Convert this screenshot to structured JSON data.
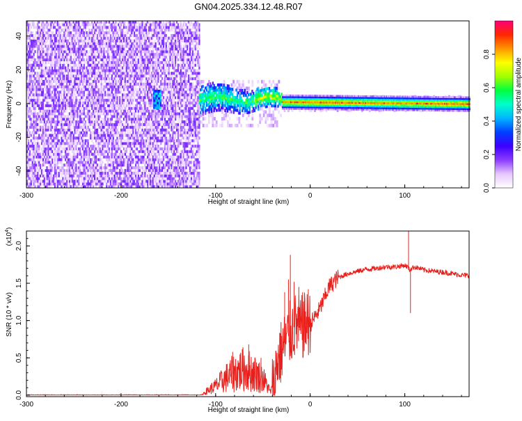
{
  "title": "GN04.2025.334.12.48.R07",
  "chart_data": [
    {
      "type": "heatmap",
      "name": "spectrogram",
      "xlabel": "Height of straight line (km)",
      "ylabel": "Frequency (Hz)",
      "xlim": [
        -300,
        168
      ],
      "ylim": [
        -50,
        49
      ],
      "xticks": [
        -300,
        -200,
        -100,
        0,
        100
      ],
      "yticks": [
        -40,
        -20,
        0,
        20,
        40
      ],
      "colorbar": {
        "label": "Normalized spectral amplitude",
        "range": [
          0,
          1
        ],
        "ticks": [
          "0.0",
          "0.2",
          "0.4",
          "0.6",
          "0.8"
        ],
        "colors": [
          "#ffffff",
          "#e6c8ff",
          "#8c3cff",
          "#3c00ff",
          "#0040ff",
          "#00b4ff",
          "#00ffcc",
          "#00ff40",
          "#a0ff00",
          "#ffff00",
          "#ff9600",
          "#ff2800",
          "#ff0078"
        ]
      },
      "regions": [
        {
          "from": -300,
          "to": -118,
          "description_values": {
            "freq_min": -50,
            "freq_max": 49,
            "amplitude_level": 0.1
          }
        },
        {
          "from": -165,
          "to": -160,
          "description_values": {
            "freq_center": 2,
            "freq_halfwidth": 4,
            "amplitude_level": 0.4
          }
        },
        {
          "from": -118,
          "to": -30,
          "description_values": {
            "freq_center": 2,
            "freq_halfwidth": 12,
            "amplitude_level": 0.45
          }
        },
        {
          "from": -30,
          "to": 168,
          "description_values": {
            "freq_center": 0,
            "freq_halfwidth": 3,
            "amplitude_level": 0.85
          }
        }
      ]
    },
    {
      "type": "line",
      "name": "snr",
      "xlabel": "Height of straight line (km)",
      "ylabel": "SNR (10 * v/v)",
      "yscale_label": "(x10",
      "yscale_exp": "4",
      "yscale_close": ")",
      "xlim": [
        -300,
        168
      ],
      "ylim": [
        -0.02,
        2.2
      ],
      "xticks": [
        -300,
        -200,
        -100,
        0,
        100
      ],
      "yticks": [
        "0.0",
        "0.5",
        "1.0",
        "1.5",
        "2.0"
      ],
      "color": "#e8201c",
      "points": [
        [
          -300,
          0.0
        ],
        [
          -250,
          0.0
        ],
        [
          -200,
          0.0
        ],
        [
          -150,
          0.0
        ],
        [
          -115,
          0.0
        ],
        [
          -110,
          0.05
        ],
        [
          -100,
          0.12
        ],
        [
          -90,
          0.22
        ],
        [
          -80,
          0.3
        ],
        [
          -70,
          0.35
        ],
        [
          -60,
          0.3
        ],
        [
          -50,
          0.22
        ],
        [
          -45,
          0.12
        ],
        [
          -42,
          0.04
        ],
        [
          -38,
          0.15
        ],
        [
          -35,
          0.45
        ],
        [
          -30,
          0.6
        ],
        [
          -25,
          0.75
        ],
        [
          -20,
          0.85
        ],
        [
          -15,
          0.95
        ],
        [
          -10,
          0.88
        ],
        [
          -5,
          0.95
        ],
        [
          0,
          0.95
        ],
        [
          5,
          1.05
        ],
        [
          10,
          1.15
        ],
        [
          15,
          1.3
        ],
        [
          20,
          1.45
        ],
        [
          25,
          1.52
        ],
        [
          30,
          1.58
        ],
        [
          40,
          1.63
        ],
        [
          50,
          1.66
        ],
        [
          60,
          1.69
        ],
        [
          70,
          1.7
        ],
        [
          80,
          1.72
        ],
        [
          90,
          1.72
        ],
        [
          100,
          1.74
        ],
        [
          103,
          1.72
        ],
        [
          105,
          1.68
        ],
        [
          110,
          1.72
        ],
        [
          120,
          1.68
        ],
        [
          130,
          1.66
        ],
        [
          140,
          1.65
        ],
        [
          150,
          1.63
        ],
        [
          160,
          1.61
        ],
        [
          168,
          1.6
        ]
      ],
      "spikes": [
        [
          -82,
          0.58
        ],
        [
          -65,
          0.68
        ],
        [
          -52,
          0.5
        ],
        [
          -27,
          1.38
        ],
        [
          -23,
          1.55
        ],
        [
          -21,
          1.88
        ],
        [
          -17,
          1.52
        ],
        [
          -12,
          1.45
        ],
        [
          -8,
          1.38
        ],
        [
          -4,
          1.05
        ],
        [
          -2,
          1.42
        ],
        [
          104,
          2.25
        ],
        [
          106,
          1.1
        ]
      ]
    }
  ]
}
